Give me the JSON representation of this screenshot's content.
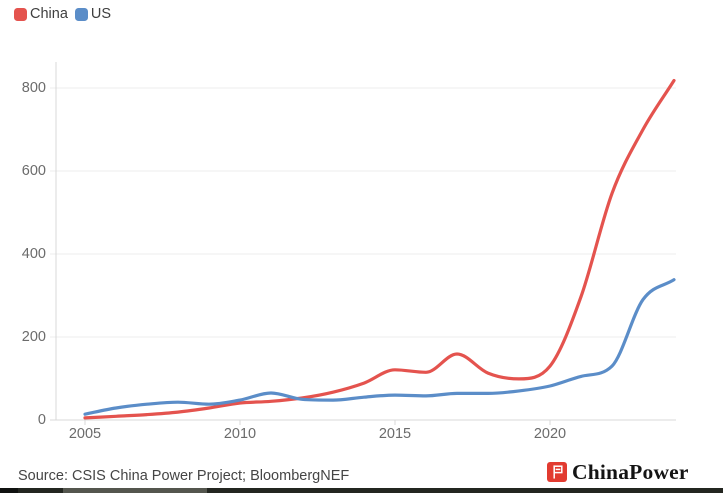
{
  "legend": {
    "items": [
      {
        "label": "China",
        "color": "#e4534e"
      },
      {
        "label": "US",
        "color": "#5b8dc8"
      }
    ]
  },
  "chart_data": {
    "type": "line",
    "x": [
      2005,
      2006,
      2007,
      2008,
      2009,
      2010,
      2011,
      2012,
      2013,
      2014,
      2015,
      2016,
      2017,
      2018,
      2019,
      2020,
      2021,
      2022,
      2023,
      2024
    ],
    "series": [
      {
        "name": "China",
        "color": "#e4534e",
        "values": [
          5,
          9,
          13,
          19,
          29,
          41,
          45,
          53,
          67,
          89,
          121,
          115,
          159,
          113,
          99,
          130,
          297,
          546,
          700,
          818
        ]
      },
      {
        "name": "US",
        "color": "#5b8dc8",
        "values": [
          14,
          29,
          38,
          43,
          38,
          48,
          65,
          50,
          48,
          55,
          60,
          58,
          64,
          64,
          70,
          82,
          105,
          130,
          290,
          338
        ]
      }
    ],
    "title": "",
    "xlabel": "",
    "ylabel": "",
    "xticks": [
      2005,
      2010,
      2015,
      2020
    ],
    "yticks": [
      0,
      200,
      400,
      600,
      800
    ],
    "xlim": [
      2004,
      2024.2
    ],
    "ylim": [
      0,
      860
    ],
    "grid": "horizontal",
    "legend_position": "top-left"
  },
  "footer": {
    "source": "Source: CSIS China Power Project; BloombergNEF",
    "brand": "ChinaPower"
  },
  "colors": {
    "gridline": "#ececec",
    "axis": "#d9d9d9",
    "tick_text": "#6b6b6b",
    "brand_red": "#e23b30"
  }
}
